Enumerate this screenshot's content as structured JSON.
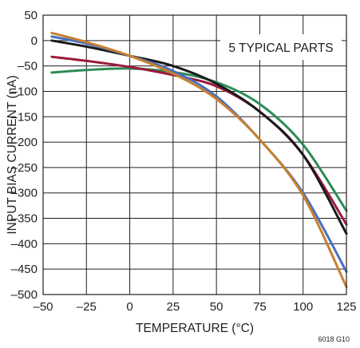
{
  "chart_data": {
    "type": "line",
    "xlabel": "TEMPERATURE (°C)",
    "ylabel": "INPUT BIAS CURRENT  (nA)",
    "xlim": [
      -50,
      125
    ],
    "ylim": [
      -500,
      50
    ],
    "x_ticks": [
      -50,
      -25,
      0,
      25,
      50,
      75,
      100,
      125
    ],
    "y_ticks": [
      50,
      0,
      -50,
      -100,
      -150,
      -200,
      -250,
      -300,
      -350,
      -400,
      -450,
      -500
    ],
    "x_tick_labels": [
      "–50",
      "–25",
      "0",
      "25",
      "50",
      "75",
      "100",
      "125"
    ],
    "y_tick_labels": [
      "50",
      "0",
      "–50",
      "–100",
      "–150",
      "–200",
      "–250",
      "–300",
      "–350",
      "–400",
      "–450",
      "–500"
    ],
    "grid": true,
    "annotation": "5 TYPICAL PARTS",
    "figure_id": "6018 G10",
    "series": [
      {
        "color": "#2e8b57",
        "x": [
          -45,
          -25,
          0,
          25,
          50,
          75,
          100,
          125
        ],
        "y": [
          -63,
          -58,
          -55,
          -62,
          -82,
          -125,
          -205,
          -335
        ]
      },
      {
        "color": "#9b1b3a",
        "x": [
          -45,
          -25,
          0,
          25,
          50,
          75,
          100,
          125
        ],
        "y": [
          -32,
          -40,
          -52,
          -68,
          -90,
          -140,
          -225,
          -362
        ]
      },
      {
        "color": "#1a1a1a",
        "x": [
          -45,
          -25,
          0,
          25,
          50,
          75,
          100,
          125
        ],
        "y": [
          0,
          -12,
          -30,
          -50,
          -85,
          -140,
          -225,
          -380
        ]
      },
      {
        "color": "#4a6fc0",
        "x": [
          -45,
          -25,
          0,
          25,
          50,
          75,
          100,
          125
        ],
        "y": [
          8,
          -6,
          -30,
          -60,
          -110,
          -195,
          -300,
          -455
        ]
      },
      {
        "color": "#c8802f",
        "x": [
          -45,
          -25,
          0,
          25,
          50,
          75,
          100,
          125
        ],
        "y": [
          15,
          -3,
          -30,
          -65,
          -115,
          -195,
          -305,
          -485
        ]
      }
    ]
  }
}
